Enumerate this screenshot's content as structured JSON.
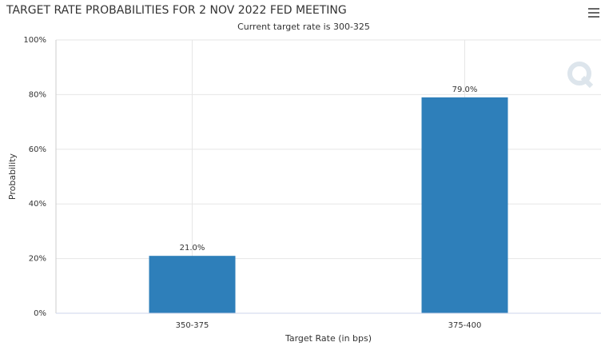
{
  "chart_data": {
    "type": "bar",
    "title": "TARGET RATE PROBABILITIES FOR 2 NOV 2022 FED MEETING",
    "subtitle": "Current target rate is 300-325",
    "x_label": "Target Rate (in bps)",
    "y_label": "Probability",
    "categories": [
      "350-375",
      "375-400"
    ],
    "values": [
      21,
      79
    ],
    "value_labels": [
      "21.0%",
      "79.0%"
    ],
    "color": "#2e7fba",
    "ylim": [
      0,
      100
    ],
    "yticks": [
      {
        "value": 0,
        "label": "0%"
      },
      {
        "value": 20,
        "label": "20%"
      },
      {
        "value": 40,
        "label": "40%"
      },
      {
        "value": 60,
        "label": "60%"
      },
      {
        "value": 80,
        "label": "80%"
      },
      {
        "value": 100,
        "label": "100%"
      }
    ],
    "grid": true
  }
}
